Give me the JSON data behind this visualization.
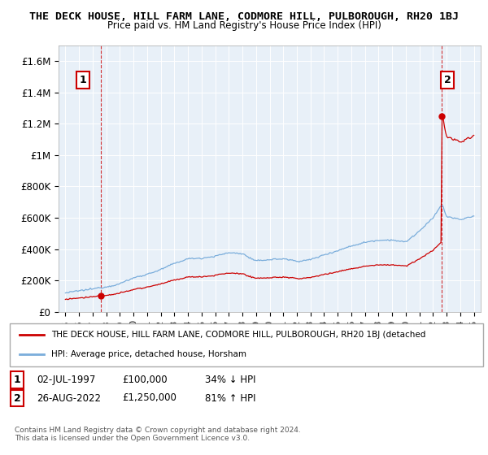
{
  "title": "THE DECK HOUSE, HILL FARM LANE, CODMORE HILL, PULBOROUGH, RH20 1BJ",
  "subtitle": "Price paid vs. HM Land Registry's House Price Index (HPI)",
  "yticks": [
    0,
    200000,
    400000,
    600000,
    800000,
    1000000,
    1200000,
    1400000,
    1600000
  ],
  "ytick_labels": [
    "£0",
    "£200K",
    "£400K",
    "£600K",
    "£800K",
    "£1M",
    "£1.2M",
    "£1.4M",
    "£1.6M"
  ],
  "xlim_start": 1994.5,
  "xlim_end": 2025.5,
  "ylim": [
    0,
    1700000
  ],
  "legend_line1": "THE DECK HOUSE, HILL FARM LANE, CODMORE HILL, PULBOROUGH, RH20 1BJ (detached",
  "legend_line2": "HPI: Average price, detached house, Horsham",
  "annotation1_label": "1",
  "annotation1_date": "02-JUL-1997",
  "annotation1_price": "£100,000",
  "annotation1_hpi": "34% ↓ HPI",
  "annotation2_label": "2",
  "annotation2_date": "26-AUG-2022",
  "annotation2_price": "£1,250,000",
  "annotation2_hpi": "81% ↑ HPI",
  "footnote": "Contains HM Land Registry data © Crown copyright and database right 2024.\nThis data is licensed under the Open Government Licence v3.0.",
  "price_paid_color": "#cc0000",
  "hpi_color": "#7aaddb",
  "sale1_x": 1997.58,
  "sale1_y": 100000,
  "sale2_x": 2022.65,
  "sale2_y": 1250000,
  "background_color": "#ffffff",
  "plot_bg_color": "#e8f0f8",
  "grid_color": "#ffffff"
}
